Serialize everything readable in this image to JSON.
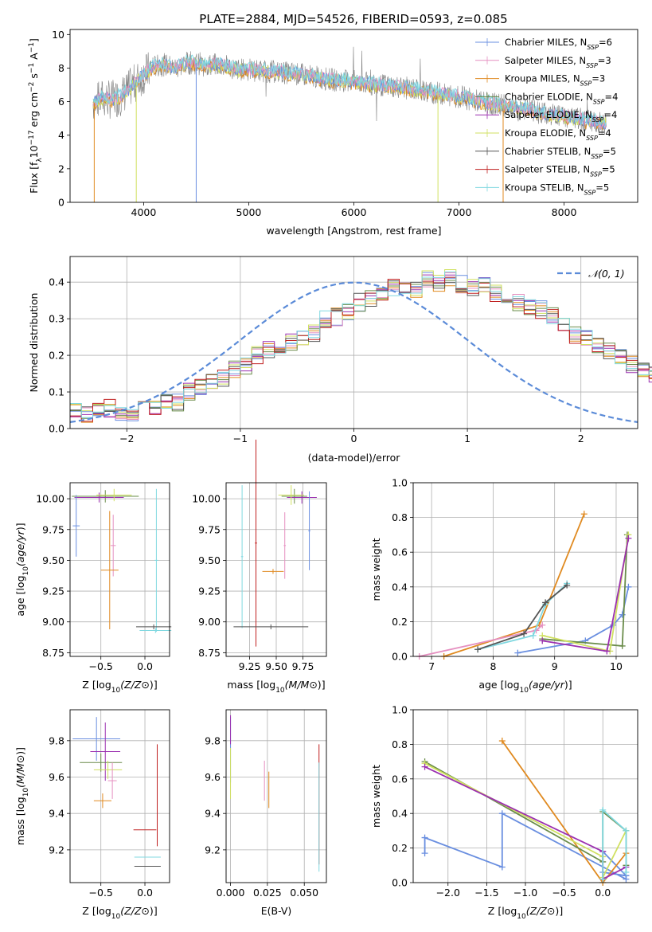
{
  "title": "PLATE=2884, MJD=54526, FIBERID=0593, z=0.085",
  "colors": {
    "chabrier_miles": "#6a8fe0",
    "salpeter_miles": "#e58fc0",
    "kroupa_miles": "#e08a20",
    "chabrier_elodie": "#6a8c4a",
    "salpeter_elodie": "#9b30b0",
    "kroupa_elodie": "#d0e060",
    "chabrier_stelib": "#555555",
    "salpeter_stelib": "#c02020",
    "kroupa_stelib": "#80d8e0",
    "data": "#808080",
    "normal": "#5b8bd8"
  },
  "panels": {
    "spectrum": {
      "xlabel": "wavelength [Angstrom, rest frame]",
      "ylabel_parts": [
        "Flux [f",
        "λ",
        "10",
        "−17",
        " erg cm",
        "−2",
        " s",
        "−1",
        " A",
        "−1",
        "]"
      ],
      "xticks": [
        "4000",
        "5000",
        "6000",
        "7000",
        "8000"
      ],
      "yticks": [
        "0",
        "2",
        "4",
        "6",
        "8",
        "10"
      ],
      "legend": [
        {
          "name": "Chabrier MILES",
          "n": "6"
        },
        {
          "name": "Salpeter MILES",
          "n": "3"
        },
        {
          "name": "Kroupa MILES",
          "n": "3"
        },
        {
          "name": "Chabrier ELODIE",
          "n": "4"
        },
        {
          "name": "Salpeter ELODIE",
          "n": "4"
        },
        {
          "name": "Kroupa ELODIE",
          "n": "4"
        },
        {
          "name": "Chabrier STELIB",
          "n": "5"
        },
        {
          "name": "Salpeter STELIB",
          "n": "5"
        },
        {
          "name": "Kroupa STELIB",
          "n": "5"
        }
      ],
      "legend_sub": "SSP"
    },
    "histogram": {
      "xlabel": "(data-model)/error",
      "ylabel": "Normed distribution",
      "xticks": [
        "−2",
        "−1",
        "0",
        "1",
        "2"
      ],
      "yticks": [
        "0.0",
        "0.1",
        "0.2",
        "0.3",
        "0.4"
      ],
      "legend": "𝒩(0, 1)"
    },
    "age_z": {
      "xlabel": "Z [log",
      "ylabel": "age  [log",
      "xticks": [
        "−0.5",
        "0.0"
      ],
      "yticks": [
        "8.75",
        "9.00",
        "9.25",
        "9.50",
        "9.75",
        "10.00"
      ]
    },
    "age_mass": {
      "xlabel": "mass [log",
      "xticks": [
        "9.25",
        "9.50",
        "9.75"
      ],
      "yticks": [
        "8.75",
        "9.00",
        "9.25",
        "9.50",
        "9.75",
        "10.00"
      ]
    },
    "mw_age": {
      "xlabel": "age  [log",
      "ylabel": "mass weight",
      "xticks": [
        "7",
        "8",
        "9",
        "10"
      ],
      "yticks": [
        "0.0",
        "0.2",
        "0.4",
        "0.6",
        "0.8",
        "1.0"
      ]
    },
    "mass_z": {
      "xlabel": "Z [log",
      "ylabel": "mass [log",
      "xticks": [
        "−0.5",
        "0.0"
      ],
      "yticks": [
        "9.2",
        "9.4",
        "9.6",
        "9.8"
      ]
    },
    "mass_ebv": {
      "xlabel": "E(B-V)",
      "xticks": [
        "0.000",
        "0.025",
        "0.050"
      ],
      "yticks": [
        "9.2",
        "9.4",
        "9.6",
        "9.8"
      ]
    },
    "mw_z": {
      "xlabel": "Z [log",
      "ylabel": "mass weight",
      "xticks": [
        "−2.0",
        "−1.5",
        "−1.0",
        "−0.5",
        "0.0"
      ],
      "yticks": [
        "0.0",
        "0.2",
        "0.4",
        "0.6",
        "0.8",
        "1.0"
      ]
    }
  },
  "chart_data": [
    {
      "type": "line",
      "title": "PLATE=2884, MJD=54526, FIBERID=0593, z=0.085",
      "xlabel": "wavelength [Angstrom, rest frame]",
      "ylabel": "Flux [fλ 10^-17 erg cm^-2 s^-1 A^-1]",
      "xlim": [
        3300,
        8700
      ],
      "ylim": [
        0,
        10.3
      ],
      "model_continuum": {
        "x": [
          3520,
          3600,
          3700,
          3800,
          3900,
          4000,
          4100,
          4200,
          4300,
          4400,
          4500,
          4600,
          4700,
          4800,
          4900,
          5000,
          5200,
          5400,
          5600,
          5800,
          6000,
          6200,
          6400,
          6600,
          6800,
          7000,
          7200,
          7400,
          7600,
          7800,
          8000,
          8200,
          8400
        ],
        "y": [
          5.9,
          6.2,
          6.1,
          6.4,
          7.0,
          7.6,
          8.1,
          8.2,
          8.0,
          8.3,
          8.3,
          8.2,
          8.2,
          8.1,
          7.9,
          7.9,
          7.8,
          7.7,
          7.5,
          7.3,
          7.2,
          7.0,
          6.9,
          6.7,
          6.5,
          6.3,
          6.0,
          5.8,
          5.6,
          5.3,
          5.1,
          4.9,
          4.7
        ]
      },
      "legend": [
        "Chabrier MILES, N_SSP=6",
        "Salpeter MILES, N_SSP=3",
        "Kroupa MILES, N_SSP=3",
        "Chabrier ELODIE, N_SSP=4",
        "Salpeter ELODIE, N_SSP=4",
        "Kroupa ELODIE, N_SSP=4",
        "Chabrier STELIB, N_SSP=5",
        "Salpeter STELIB, N_SSP=5",
        "Kroupa STELIB, N_SSP=5"
      ]
    },
    {
      "type": "bar",
      "xlabel": "(data-model)/error",
      "ylabel": "Normed distribution",
      "xlim": [
        -2.5,
        2.5
      ],
      "ylim": [
        0,
        0.47
      ],
      "bin_width": 0.1,
      "bin_start": -2.5,
      "base_values": [
        0.05,
        0.04,
        0.05,
        0.055,
        0.04,
        0.045,
        0.06,
        0.055,
        0.075,
        0.07,
        0.1,
        0.11,
        0.125,
        0.14,
        0.16,
        0.17,
        0.2,
        0.215,
        0.21,
        0.235,
        0.25,
        0.26,
        0.3,
        0.305,
        0.32,
        0.345,
        0.355,
        0.36,
        0.385,
        0.375,
        0.38,
        0.41,
        0.395,
        0.41,
        0.395,
        0.385,
        0.39,
        0.37,
        0.36,
        0.345,
        0.33,
        0.325,
        0.31,
        0.29,
        0.255,
        0.245,
        0.23,
        0.215,
        0.2,
        0.175,
        0.165,
        0.15,
        0.135,
        0.12,
        0.1,
        0.095,
        0.08,
        0.07,
        0.055,
        0.05
      ],
      "normal_curve": "N(0,1)"
    },
    {
      "type": "scatter",
      "xlabel": "Z [log10(Z/Zsun)]",
      "ylabel": "age [log10(age/yr)]",
      "xlim": [
        -0.85,
        0.28
      ],
      "ylim": [
        8.72,
        10.13
      ],
      "points": [
        {
          "x": -0.45,
          "y": 10.02,
          "xerr": 0.38,
          "yerr": 0.05,
          "c": "chabrier_elodie"
        },
        {
          "x": -0.52,
          "y": 10.01,
          "xerr": 0.28,
          "yerr": 0.04,
          "c": "salpeter_elodie"
        },
        {
          "x": -0.35,
          "y": 10.03,
          "xerr": 0.2,
          "yerr": 0.05,
          "c": "kroupa_elodie"
        },
        {
          "x": -0.78,
          "y": 9.78,
          "xerr": 0.04,
          "yerr": 0.25,
          "c": "chabrier_miles"
        },
        {
          "x": -0.36,
          "y": 9.62,
          "xerr": 0.03,
          "yerr": 0.25,
          "c": "salpeter_miles"
        },
        {
          "x": -0.4,
          "y": 9.42,
          "xerr": 0.1,
          "yerr": 0.48,
          "c": "kroupa_miles"
        },
        {
          "x": 0.13,
          "y": 9.5,
          "xerr": 0.02,
          "yerr": 0.58,
          "c": "kroupa_stelib"
        },
        {
          "x": 0.1,
          "y": 8.96,
          "xerr": 0.2,
          "yerr": 0.02,
          "c": "chabrier_stelib"
        },
        {
          "x": 0.12,
          "y": 8.93,
          "xerr": 0.18,
          "yerr": 0.02,
          "c": "kroupa_stelib"
        }
      ]
    },
    {
      "type": "scatter",
      "xlabel": "mass [log10(M/Msun)]",
      "ylabel": "age [log10(age/yr)]",
      "xlim": [
        9.03,
        9.97
      ],
      "ylim": [
        8.72,
        10.13
      ],
      "points": [
        {
          "x": 9.67,
          "y": 10.02,
          "xerr": 0.12,
          "yerr": 0.06,
          "c": "chabrier_elodie"
        },
        {
          "x": 9.74,
          "y": 10.01,
          "xerr": 0.14,
          "yerr": 0.05,
          "c": "salpeter_elodie"
        },
        {
          "x": 9.64,
          "y": 10.03,
          "xerr": 0.12,
          "yerr": 0.08,
          "c": "kroupa_elodie"
        },
        {
          "x": 9.81,
          "y": 9.74,
          "xerr": 0.01,
          "yerr": 0.32,
          "c": "chabrier_miles"
        },
        {
          "x": 9.58,
          "y": 9.62,
          "xerr": 0.01,
          "yerr": 0.27,
          "c": "salpeter_miles"
        },
        {
          "x": 9.47,
          "y": 9.41,
          "xerr": 0.1,
          "yerr": 0.02,
          "c": "kroupa_miles"
        },
        {
          "x": 9.31,
          "y": 9.64,
          "xerr": 0.01,
          "yerr": 0.84,
          "c": "salpeter_stelib"
        },
        {
          "x": 9.18,
          "y": 9.53,
          "xerr": 0.01,
          "yerr": 0.58,
          "c": "kroupa_stelib"
        },
        {
          "x": 9.45,
          "y": 8.96,
          "xerr": 0.35,
          "yerr": 0.02,
          "c": "chabrier_stelib"
        }
      ]
    },
    {
      "type": "line",
      "xlabel": "age [log10(age/yr)]",
      "ylabel": "mass weight",
      "xlim": [
        6.7,
        10.35
      ],
      "ylim": [
        0,
        1
      ],
      "series": [
        {
          "c": "chabrier_miles",
          "x": [
            8.4,
            9.5,
            9.95,
            10.1,
            10.2
          ],
          "y": [
            0.02,
            0.09,
            0.18,
            0.24,
            0.4
          ]
        },
        {
          "c": "kroupa_miles",
          "x": [
            7.2,
            8.75,
            9.48
          ],
          "y": [
            0.0,
            0.18,
            0.82
          ]
        },
        {
          "c": "salpeter_miles",
          "x": [
            6.8,
            8.7,
            8.8
          ],
          "y": [
            0.0,
            0.15,
            0.18
          ]
        },
        {
          "c": "kroupa_stelib",
          "x": [
            7.75,
            8.65,
            8.85,
            9.2
          ],
          "y": [
            0.04,
            0.12,
            0.3,
            0.42
          ]
        },
        {
          "c": "chabrier_elodie",
          "x": [
            8.8,
            10.1,
            10.18
          ],
          "y": [
            0.1,
            0.06,
            0.7
          ]
        },
        {
          "c": "kroupa_elodie",
          "x": [
            8.8,
            9.9,
            10.2
          ],
          "y": [
            0.12,
            0.03,
            0.7
          ]
        },
        {
          "c": "salpeter_elodie",
          "x": [
            8.8,
            9.85,
            10.2
          ],
          "y": [
            0.09,
            0.03,
            0.68
          ]
        },
        {
          "c": "chabrier_stelib",
          "x": [
            7.75,
            8.5,
            8.85,
            9.2
          ],
          "y": [
            0.04,
            0.13,
            0.31,
            0.41
          ]
        }
      ]
    },
    {
      "type": "scatter",
      "xlabel": "Z [log10(Z/Zsun)]",
      "ylabel": "mass [log10(M/Msun)]",
      "xlim": [
        -0.85,
        0.28
      ],
      "ylim": [
        9.02,
        9.97
      ],
      "points": [
        {
          "x": -0.55,
          "y": 9.81,
          "xerr": 0.27,
          "yerr": 0.12,
          "c": "chabrier_miles"
        },
        {
          "x": -0.45,
          "y": 9.74,
          "xerr": 0.17,
          "yerr": 0.16,
          "c": "salpeter_elodie"
        },
        {
          "x": -0.5,
          "y": 9.68,
          "xerr": 0.24,
          "yerr": 0.05,
          "c": "chabrier_elodie"
        },
        {
          "x": -0.42,
          "y": 9.64,
          "xerr": 0.16,
          "yerr": 0.05,
          "c": "kroupa_elodie"
        },
        {
          "x": -0.37,
          "y": 9.58,
          "xerr": 0.05,
          "yerr": 0.1,
          "c": "salpeter_miles"
        },
        {
          "x": -0.48,
          "y": 9.47,
          "xerr": 0.1,
          "yerr": 0.04,
          "c": "kroupa_miles"
        },
        {
          "x": 0.0,
          "y": 9.31,
          "xerr": 0.13,
          "yerr": 0.0,
          "c": "salpeter_stelib"
        },
        {
          "x": 0.03,
          "y": 9.16,
          "xerr": 0.15,
          "yerr": 0.0,
          "c": "kroupa_stelib"
        },
        {
          "x": 0.03,
          "y": 9.11,
          "xerr": 0.15,
          "yerr": 0.0,
          "c": "chabrier_stelib"
        },
        {
          "x": 0.14,
          "y": 9.5,
          "xerr": 0.0,
          "yerr": 0.28,
          "c": "salpeter_stelib"
        }
      ]
    },
    {
      "type": "scatter",
      "xlabel": "E(B-V)",
      "ylabel": "mass [log10(M/Msun)]",
      "xlim": [
        -0.003,
        0.065
      ],
      "ylim": [
        9.02,
        9.97
      ],
      "points": [
        {
          "x": 0.0,
          "y": 9.75,
          "xerr": 0.0,
          "yerr": 0.18,
          "c": "chabrier_miles"
        },
        {
          "x": 0.0,
          "y": 9.62,
          "xerr": 0.0,
          "yerr": 0.14,
          "c": "kroupa_elodie"
        },
        {
          "x": 0.0,
          "y": 9.86,
          "xerr": 0.0,
          "yerr": 0.08,
          "c": "salpeter_elodie"
        },
        {
          "x": 0.023,
          "y": 9.58,
          "xerr": 0.0,
          "yerr": 0.11,
          "c": "salpeter_miles"
        },
        {
          "x": 0.026,
          "y": 9.53,
          "xerr": 0.0,
          "yerr": 0.1,
          "c": "kroupa_miles"
        },
        {
          "x": 0.06,
          "y": 9.45,
          "xerr": 0.0,
          "yerr": 0.33,
          "c": "salpeter_stelib"
        },
        {
          "x": 0.06,
          "y": 9.38,
          "xerr": 0.0,
          "yerr": 0.3,
          "c": "kroupa_stelib"
        }
      ]
    },
    {
      "type": "line",
      "xlabel": "Z [log10(Z/Zsun)]",
      "ylabel": "mass weight",
      "xlim": [
        -2.45,
        0.45
      ],
      "ylim": [
        0,
        1
      ],
      "series": [
        {
          "c": "chabrier_miles",
          "x": [
            -2.3,
            -2.3,
            -1.3,
            -1.3,
            0.3,
            0.3,
            0.0,
            0.0,
            0.3
          ],
          "y": [
            0.17,
            0.26,
            0.09,
            0.4,
            0.02,
            0.04,
            0.06,
            0.18,
            0.04
          ]
        },
        {
          "c": "kroupa_miles",
          "x": [
            -1.3,
            0.0,
            0.3
          ],
          "y": [
            0.82,
            0.0,
            0.17
          ]
        },
        {
          "c": "chabrier_elodie",
          "x": [
            -2.3,
            0.0,
            0.0,
            0.3,
            0.3
          ],
          "y": [
            0.7,
            0.12,
            0.41,
            0.3,
            0.1
          ]
        },
        {
          "c": "kroupa_elodie",
          "x": [
            -2.3,
            0.0,
            0.0,
            0.3
          ],
          "y": [
            0.69,
            0.15,
            0.03,
            0.3
          ]
        },
        {
          "c": "salpeter_elodie",
          "x": [
            -2.3,
            0.0,
            0.0,
            0.3
          ],
          "y": [
            0.67,
            0.18,
            0.02,
            0.09
          ]
        },
        {
          "c": "kroupa_stelib",
          "x": [
            0.0,
            0.0,
            0.3,
            0.3
          ],
          "y": [
            0.02,
            0.42,
            0.3,
            0.06
          ]
        }
      ]
    }
  ]
}
